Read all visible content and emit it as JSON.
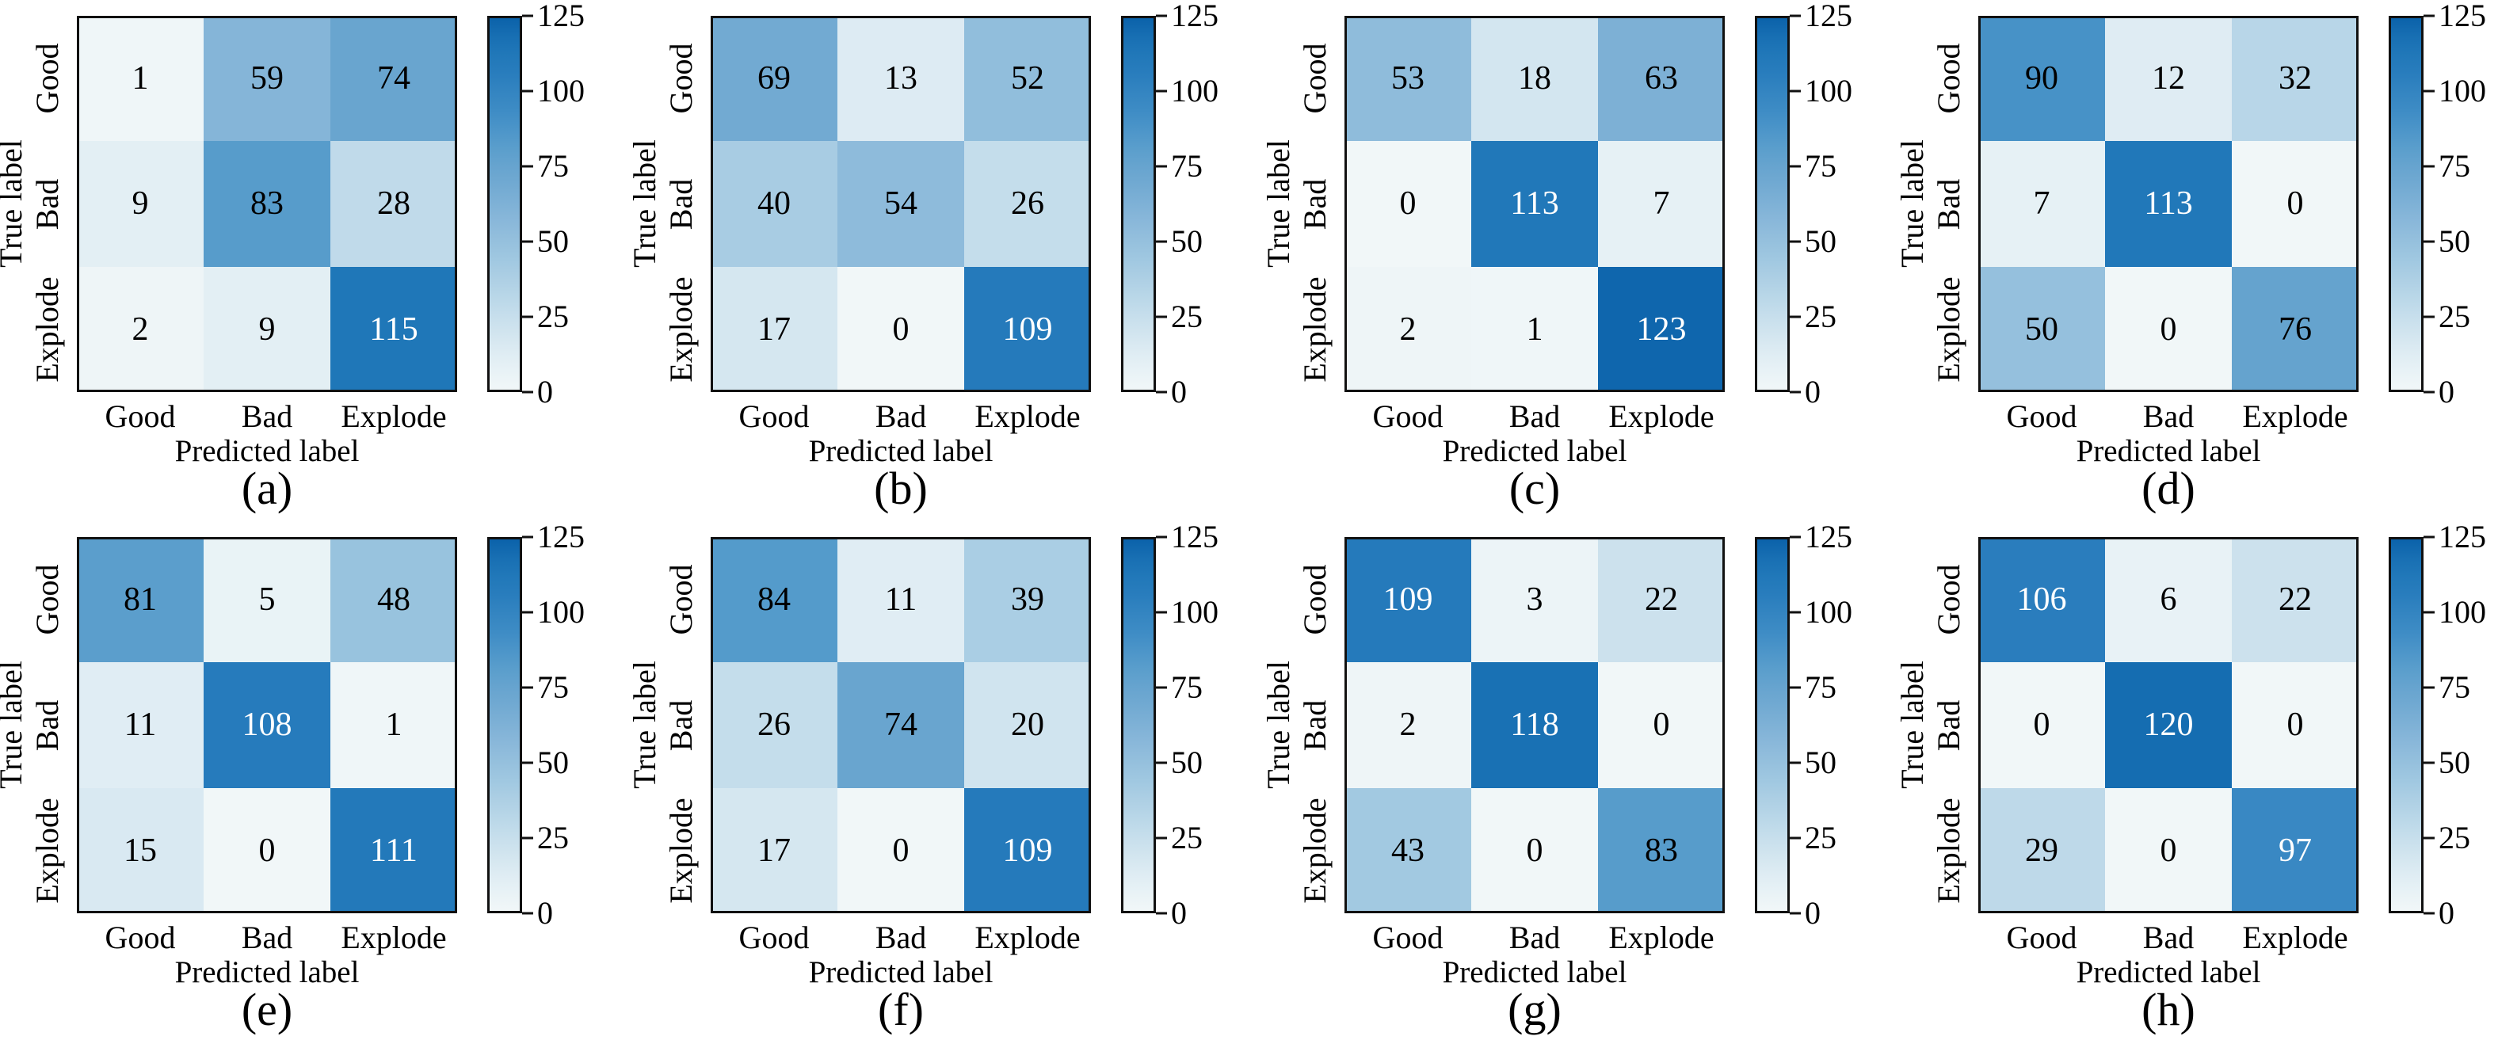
{
  "chart_data": [
    {
      "type": "heatmap",
      "title": "",
      "caption": "(a)",
      "xlabel": "Predicted label",
      "ylabel": "True label",
      "x_categories": [
        "Good",
        "Bad",
        "Explode"
      ],
      "y_categories": [
        "Good",
        "Bad",
        "Explode"
      ],
      "values": [
        [
          1,
          59,
          74
        ],
        [
          9,
          83,
          28
        ],
        [
          2,
          9,
          115
        ]
      ],
      "colorbar": {
        "vmin": 0,
        "vmax": 125,
        "ticks": [
          0,
          25,
          50,
          75,
          100,
          125
        ],
        "colormap": "Blues"
      }
    },
    {
      "type": "heatmap",
      "title": "",
      "caption": "(b)",
      "xlabel": "Predicted label",
      "ylabel": "True label",
      "x_categories": [
        "Good",
        "Bad",
        "Explode"
      ],
      "y_categories": [
        "Good",
        "Bad",
        "Explode"
      ],
      "values": [
        [
          69,
          13,
          52
        ],
        [
          40,
          54,
          26
        ],
        [
          17,
          0,
          109
        ]
      ],
      "colorbar": {
        "vmin": 0,
        "vmax": 125,
        "ticks": [
          0,
          25,
          50,
          75,
          100,
          125
        ],
        "colormap": "Blues"
      }
    },
    {
      "type": "heatmap",
      "title": "",
      "caption": "(c)",
      "xlabel": "Predicted label",
      "ylabel": "True label",
      "x_categories": [
        "Good",
        "Bad",
        "Explode"
      ],
      "y_categories": [
        "Good",
        "Bad",
        "Explode"
      ],
      "values": [
        [
          53,
          18,
          63
        ],
        [
          0,
          113,
          7
        ],
        [
          2,
          1,
          123
        ]
      ],
      "colorbar": {
        "vmin": 0,
        "vmax": 125,
        "ticks": [
          0,
          25,
          50,
          75,
          100,
          125
        ],
        "colormap": "Blues"
      }
    },
    {
      "type": "heatmap",
      "title": "",
      "caption": "(d)",
      "xlabel": "Predicted label",
      "ylabel": "True label",
      "x_categories": [
        "Good",
        "Bad",
        "Explode"
      ],
      "y_categories": [
        "Good",
        "Bad",
        "Explode"
      ],
      "values": [
        [
          90,
          12,
          32
        ],
        [
          7,
          113,
          0
        ],
        [
          50,
          0,
          76
        ]
      ],
      "colorbar": {
        "vmin": 0,
        "vmax": 125,
        "ticks": [
          0,
          25,
          50,
          75,
          100,
          125
        ],
        "colormap": "Blues"
      }
    },
    {
      "type": "heatmap",
      "title": "",
      "caption": "(e)",
      "xlabel": "Predicted label",
      "ylabel": "True label",
      "x_categories": [
        "Good",
        "Bad",
        "Explode"
      ],
      "y_categories": [
        "Good",
        "Bad",
        "Explode"
      ],
      "values": [
        [
          81,
          5,
          48
        ],
        [
          11,
          108,
          1
        ],
        [
          15,
          0,
          111
        ]
      ],
      "colorbar": {
        "vmin": 0,
        "vmax": 125,
        "ticks": [
          0,
          25,
          50,
          75,
          100,
          125
        ],
        "colormap": "Blues"
      }
    },
    {
      "type": "heatmap",
      "title": "",
      "caption": "(f)",
      "xlabel": "Predicted label",
      "ylabel": "True label",
      "x_categories": [
        "Good",
        "Bad",
        "Explode"
      ],
      "y_categories": [
        "Good",
        "Bad",
        "Explode"
      ],
      "values": [
        [
          84,
          11,
          39
        ],
        [
          26,
          74,
          20
        ],
        [
          17,
          0,
          109
        ]
      ],
      "colorbar": {
        "vmin": 0,
        "vmax": 125,
        "ticks": [
          0,
          25,
          50,
          75,
          100,
          125
        ],
        "colormap": "Blues"
      }
    },
    {
      "type": "heatmap",
      "title": "",
      "caption": "(g)",
      "xlabel": "Predicted label",
      "ylabel": "True label",
      "x_categories": [
        "Good",
        "Bad",
        "Explode"
      ],
      "y_categories": [
        "Good",
        "Bad",
        "Explode"
      ],
      "values": [
        [
          109,
          3,
          22
        ],
        [
          2,
          118,
          0
        ],
        [
          43,
          0,
          83
        ]
      ],
      "colorbar": {
        "vmin": 0,
        "vmax": 125,
        "ticks": [
          0,
          25,
          50,
          75,
          100,
          125
        ],
        "colormap": "Blues"
      }
    },
    {
      "type": "heatmap",
      "title": "",
      "caption": "(h)",
      "xlabel": "Predicted label",
      "ylabel": "True label",
      "x_categories": [
        "Good",
        "Bad",
        "Explode"
      ],
      "y_categories": [
        "Good",
        "Bad",
        "Explode"
      ],
      "values": [
        [
          106,
          6,
          22
        ],
        [
          0,
          120,
          0
        ],
        [
          29,
          0,
          97
        ]
      ],
      "colorbar": {
        "vmin": 0,
        "vmax": 125,
        "ticks": [
          0,
          25,
          50,
          75,
          100,
          125
        ],
        "colormap": "Blues"
      }
    }
  ],
  "colors": {
    "cmap_low": "#f1f7f8",
    "cmap_high": "#0b62aa",
    "text_dark": "#000000",
    "text_light": "#ffffff",
    "frame": "#111111"
  }
}
